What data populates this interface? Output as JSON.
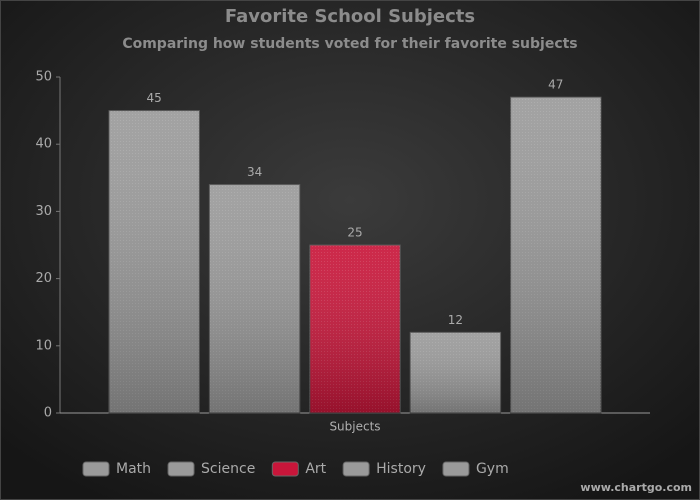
{
  "chart_data": {
    "type": "bar",
    "title": "Favorite School Subjects",
    "subtitle": "Comparing how students voted for their favorite subjects",
    "x_label": "Subjects",
    "categories": [
      "Subjects"
    ],
    "series": [
      {
        "name": "Math",
        "color": "#9a9a9a",
        "values": [
          45
        ]
      },
      {
        "name": "Science",
        "color": "#9a9a9a",
        "values": [
          34
        ]
      },
      {
        "name": "Art",
        "color": "#c8163a",
        "values": [
          25
        ]
      },
      {
        "name": "History",
        "color": "#9a9a9a",
        "values": [
          12
        ]
      },
      {
        "name": "Gym",
        "color": "#9a9a9a",
        "values": [
          47
        ]
      }
    ],
    "ylim": [
      0,
      50
    ],
    "yticks": [
      0,
      10,
      20,
      30,
      40,
      50
    ],
    "grid": false,
    "legend": "bottom",
    "watermark": "www.chartgo.com"
  }
}
